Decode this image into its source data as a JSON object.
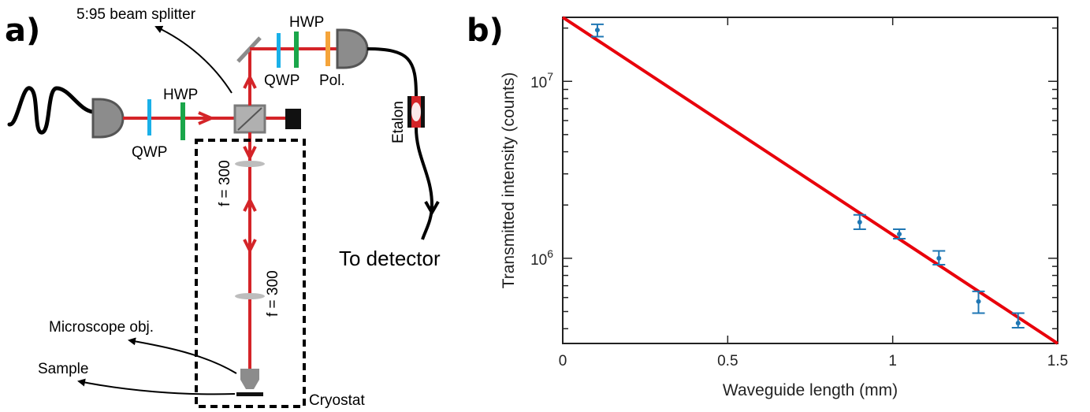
{
  "panel_a": {
    "letter": "a)",
    "labels": {
      "beam_splitter": "5:95 beam splitter",
      "hwp_top": "HWP",
      "qwp_top": "QWP",
      "pol": "Pol.",
      "hwp_left": "HWP",
      "qwp_left": "QWP",
      "etalon": "Etalon",
      "to_detector": "To detector",
      "lens_upper": "f = 300",
      "lens_lower": "f = 300",
      "microscope": "Microscope obj.",
      "sample": "Sample",
      "cryostat": "Cryostat"
    },
    "colors": {
      "beam": "#d42428",
      "qwp": "#1ab0e8",
      "hwp": "#1aa64a",
      "polarizer": "#f5a43a",
      "component_gray": "#8c8c8c"
    }
  },
  "panel_b": {
    "letter": "b)"
  },
  "chart_data": {
    "type": "scatter",
    "title": "",
    "xlabel": "Waveguide length (mm)",
    "ylabel": "Transmitted intensity (counts)",
    "xlim": [
      0,
      1.5
    ],
    "ylim": [
      330000,
      23000000
    ],
    "yscale": "log",
    "xticks": [
      "0",
      "0.5",
      "1",
      "1.5"
    ],
    "yticks": [
      {
        "base": "10",
        "exp": "7",
        "value": 10000000
      },
      {
        "base": "10",
        "exp": "6",
        "value": 1000000
      }
    ],
    "series": [
      {
        "kind": "errorbar",
        "color": "#1f77b4",
        "x": [
          0.105,
          0.9,
          1.02,
          1.14,
          1.26,
          1.38
        ],
        "y": [
          19500000,
          1600000,
          1370000,
          1000000,
          570000,
          430000
        ],
        "yerr_low": [
          17900000,
          1460000,
          1290000,
          920000,
          490000,
          405000
        ],
        "yerr_high": [
          21000000,
          1760000,
          1460000,
          1100000,
          650000,
          490000
        ]
      },
      {
        "kind": "fit",
        "color": "#e8000b",
        "x": [
          0,
          1.5
        ],
        "y": [
          23000000,
          330000
        ]
      }
    ],
    "grid": false
  }
}
